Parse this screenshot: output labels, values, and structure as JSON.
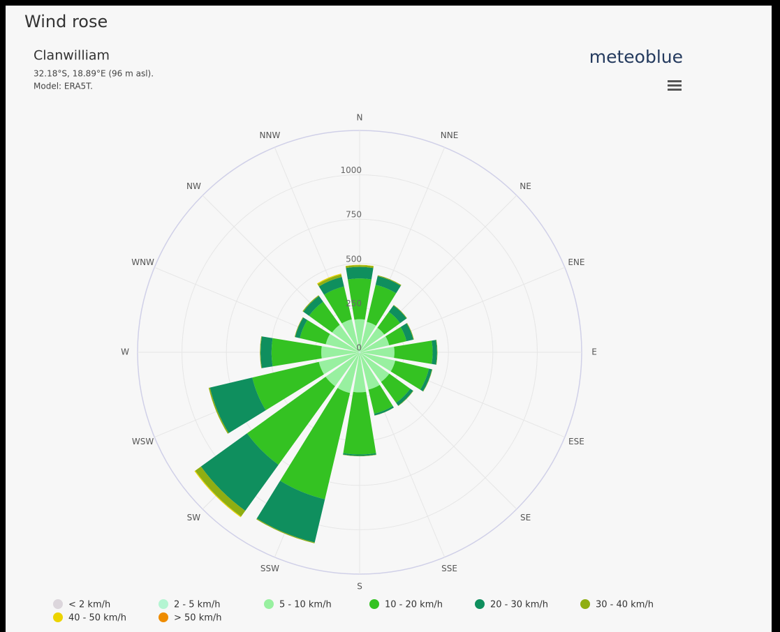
{
  "chart_data": {
    "type": "windrose",
    "title": "Wind rose",
    "subtitle": "Clanwilliam",
    "location_note": "32.18°S, 18.89°E (96 m asl).",
    "model_note": "Model: ERA5T.",
    "brand": "meteoblue",
    "categories": [
      "N",
      "NNE",
      "NE",
      "ENE",
      "E",
      "ESE",
      "SE",
      "SSE",
      "S",
      "SSW",
      "SW",
      "WSW",
      "W",
      "WNW",
      "NW",
      "NNW"
    ],
    "ylim": [
      0,
      1250
    ],
    "yticks": [
      0,
      250,
      500,
      750,
      1000
    ],
    "grid": true,
    "legend": "bottom",
    "series": [
      {
        "name": "< 2 km/h",
        "color": "#dcd6dc",
        "values": [
          1,
          1,
          1,
          1,
          1,
          1,
          1,
          1,
          1,
          1,
          1,
          1,
          1,
          1,
          1,
          1
        ]
      },
      {
        "name": "2 - 5 km/h",
        "color": "#b4f5d2",
        "values": [
          5,
          5,
          5,
          5,
          5,
          5,
          5,
          5,
          5,
          5,
          5,
          5,
          5,
          5,
          5,
          5
        ]
      },
      {
        "name": "5 - 10 km/h",
        "color": "#98f0a0",
        "values": [
          180,
          170,
          165,
          165,
          190,
          200,
          200,
          210,
          220,
          230,
          230,
          230,
          210,
          190,
          185,
          185
        ]
      },
      {
        "name": "10 - 20 km/h",
        "color": "#34c222",
        "values": [
          230,
          215,
          110,
          100,
          215,
          195,
          145,
          140,
          350,
          615,
          545,
          385,
          280,
          150,
          160,
          190
        ]
      },
      {
        "name": "20 - 30 km/h",
        "color": "#0f8f5e",
        "values": [
          65,
          50,
          45,
          40,
          25,
          18,
          20,
          10,
          8,
          250,
          320,
          245,
          62,
          27,
          40,
          55
        ]
      },
      {
        "name": "30 - 40 km/h",
        "color": "#8fae12",
        "values": [
          10,
          5,
          3,
          3,
          2,
          2,
          2,
          1,
          2,
          5,
          40,
          7,
          3,
          3,
          5,
          15
        ]
      },
      {
        "name": "40 - 50 km/h",
        "color": "#ecd400",
        "values": [
          2,
          0,
          0,
          0,
          0,
          0,
          0,
          0,
          0,
          0,
          5,
          0,
          0,
          0,
          0,
          5
        ]
      },
      {
        "name": "> 50 km/h",
        "color": "#ee8c00",
        "values": [
          0,
          0,
          0,
          0,
          0,
          0,
          0,
          0,
          0,
          0,
          0,
          0,
          0,
          0,
          0,
          0
        ]
      }
    ]
  }
}
